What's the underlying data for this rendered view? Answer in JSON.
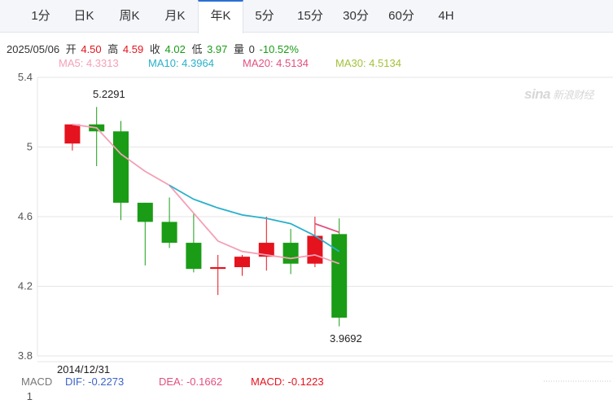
{
  "tabs": [
    {
      "label": "1分",
      "active": false
    },
    {
      "label": "日K",
      "active": false
    },
    {
      "label": "周K",
      "active": false
    },
    {
      "label": "月K",
      "active": false
    },
    {
      "label": "年K",
      "active": true
    },
    {
      "label": "5分",
      "active": false
    },
    {
      "label": "15分",
      "active": false
    },
    {
      "label": "30分",
      "active": false
    },
    {
      "label": "60分",
      "active": false
    },
    {
      "label": "4H",
      "active": false
    }
  ],
  "ohlc": {
    "date": "2025/05/06",
    "open_label": "开",
    "open": "4.50",
    "high_label": "高",
    "high": "4.59",
    "close_label": "收",
    "close": "4.02",
    "low_label": "低",
    "low": "3.97",
    "volume_label": "量",
    "volume": "0",
    "change": "-10.52%"
  },
  "ma_legend": [
    {
      "label": "MA5: 4.3313",
      "color": "#f4a0b6"
    },
    {
      "label": "MA10: 4.3964",
      "color": "#29b0c9"
    },
    {
      "label": "MA20: 4.5134",
      "color": "#e2507f"
    },
    {
      "label": "MA30: 4.5134",
      "color": "#a3c13a"
    }
  ],
  "watermark": {
    "brand": "sina",
    "name": "新浪财经"
  },
  "colors": {
    "up": "#e4131d",
    "down": "#1a9c16",
    "grid": "#e6e6e6",
    "accent": "#2a6fd6"
  },
  "chart_data": {
    "type": "candlestick",
    "ylim": [
      3.8,
      5.4
    ],
    "yticks": [
      "5.4",
      "5",
      "4.6",
      "4.2",
      "3.8"
    ],
    "start_label": "2014/12/31",
    "max_label": "5.2291",
    "min_label": "3.9692",
    "candles": [
      {
        "open": 5.02,
        "close": 5.13,
        "high": 5.13,
        "low": 4.98
      },
      {
        "open": 5.13,
        "close": 5.09,
        "high": 5.23,
        "low": 4.89
      },
      {
        "open": 5.09,
        "close": 4.68,
        "high": 5.15,
        "low": 4.58
      },
      {
        "open": 4.68,
        "close": 4.57,
        "high": 4.68,
        "low": 4.32
      },
      {
        "open": 4.57,
        "close": 4.45,
        "high": 4.71,
        "low": 4.42
      },
      {
        "open": 4.45,
        "close": 4.3,
        "high": 4.62,
        "low": 4.28
      },
      {
        "open": 4.3,
        "close": 4.31,
        "high": 4.38,
        "low": 4.15
      },
      {
        "open": 4.31,
        "close": 4.37,
        "high": 4.38,
        "low": 4.26
      },
      {
        "open": 4.37,
        "close": 4.45,
        "high": 4.6,
        "low": 4.29
      },
      {
        "open": 4.45,
        "close": 4.33,
        "high": 4.53,
        "low": 4.27
      },
      {
        "open": 4.33,
        "close": 4.49,
        "high": 4.6,
        "low": 4.31
      },
      {
        "open": 4.5,
        "close": 4.02,
        "high": 4.59,
        "low": 3.97
      }
    ],
    "ma_lines": [
      {
        "name": "MA5",
        "color": "#f4a0b6",
        "start": 0,
        "values": [
          5.13,
          5.11,
          4.96,
          4.86,
          4.78,
          4.62,
          4.46,
          4.4,
          4.38,
          4.36,
          4.38,
          4.33
        ]
      },
      {
        "name": "MA10",
        "color": "#29b0c9",
        "start": 4,
        "values": [
          4.78,
          4.7,
          4.65,
          4.61,
          4.59,
          4.56,
          4.49,
          4.4
        ]
      },
      {
        "name": "MA20",
        "color": "#e2507f",
        "start": 10,
        "values": [
          4.56,
          4.51
        ]
      }
    ]
  },
  "macd": {
    "label": "MACD",
    "dif": "DIF: -0.2273",
    "dea": "DEA: -0.1662",
    "macd": "MACD: -0.1223",
    "axis_tick": "1"
  }
}
